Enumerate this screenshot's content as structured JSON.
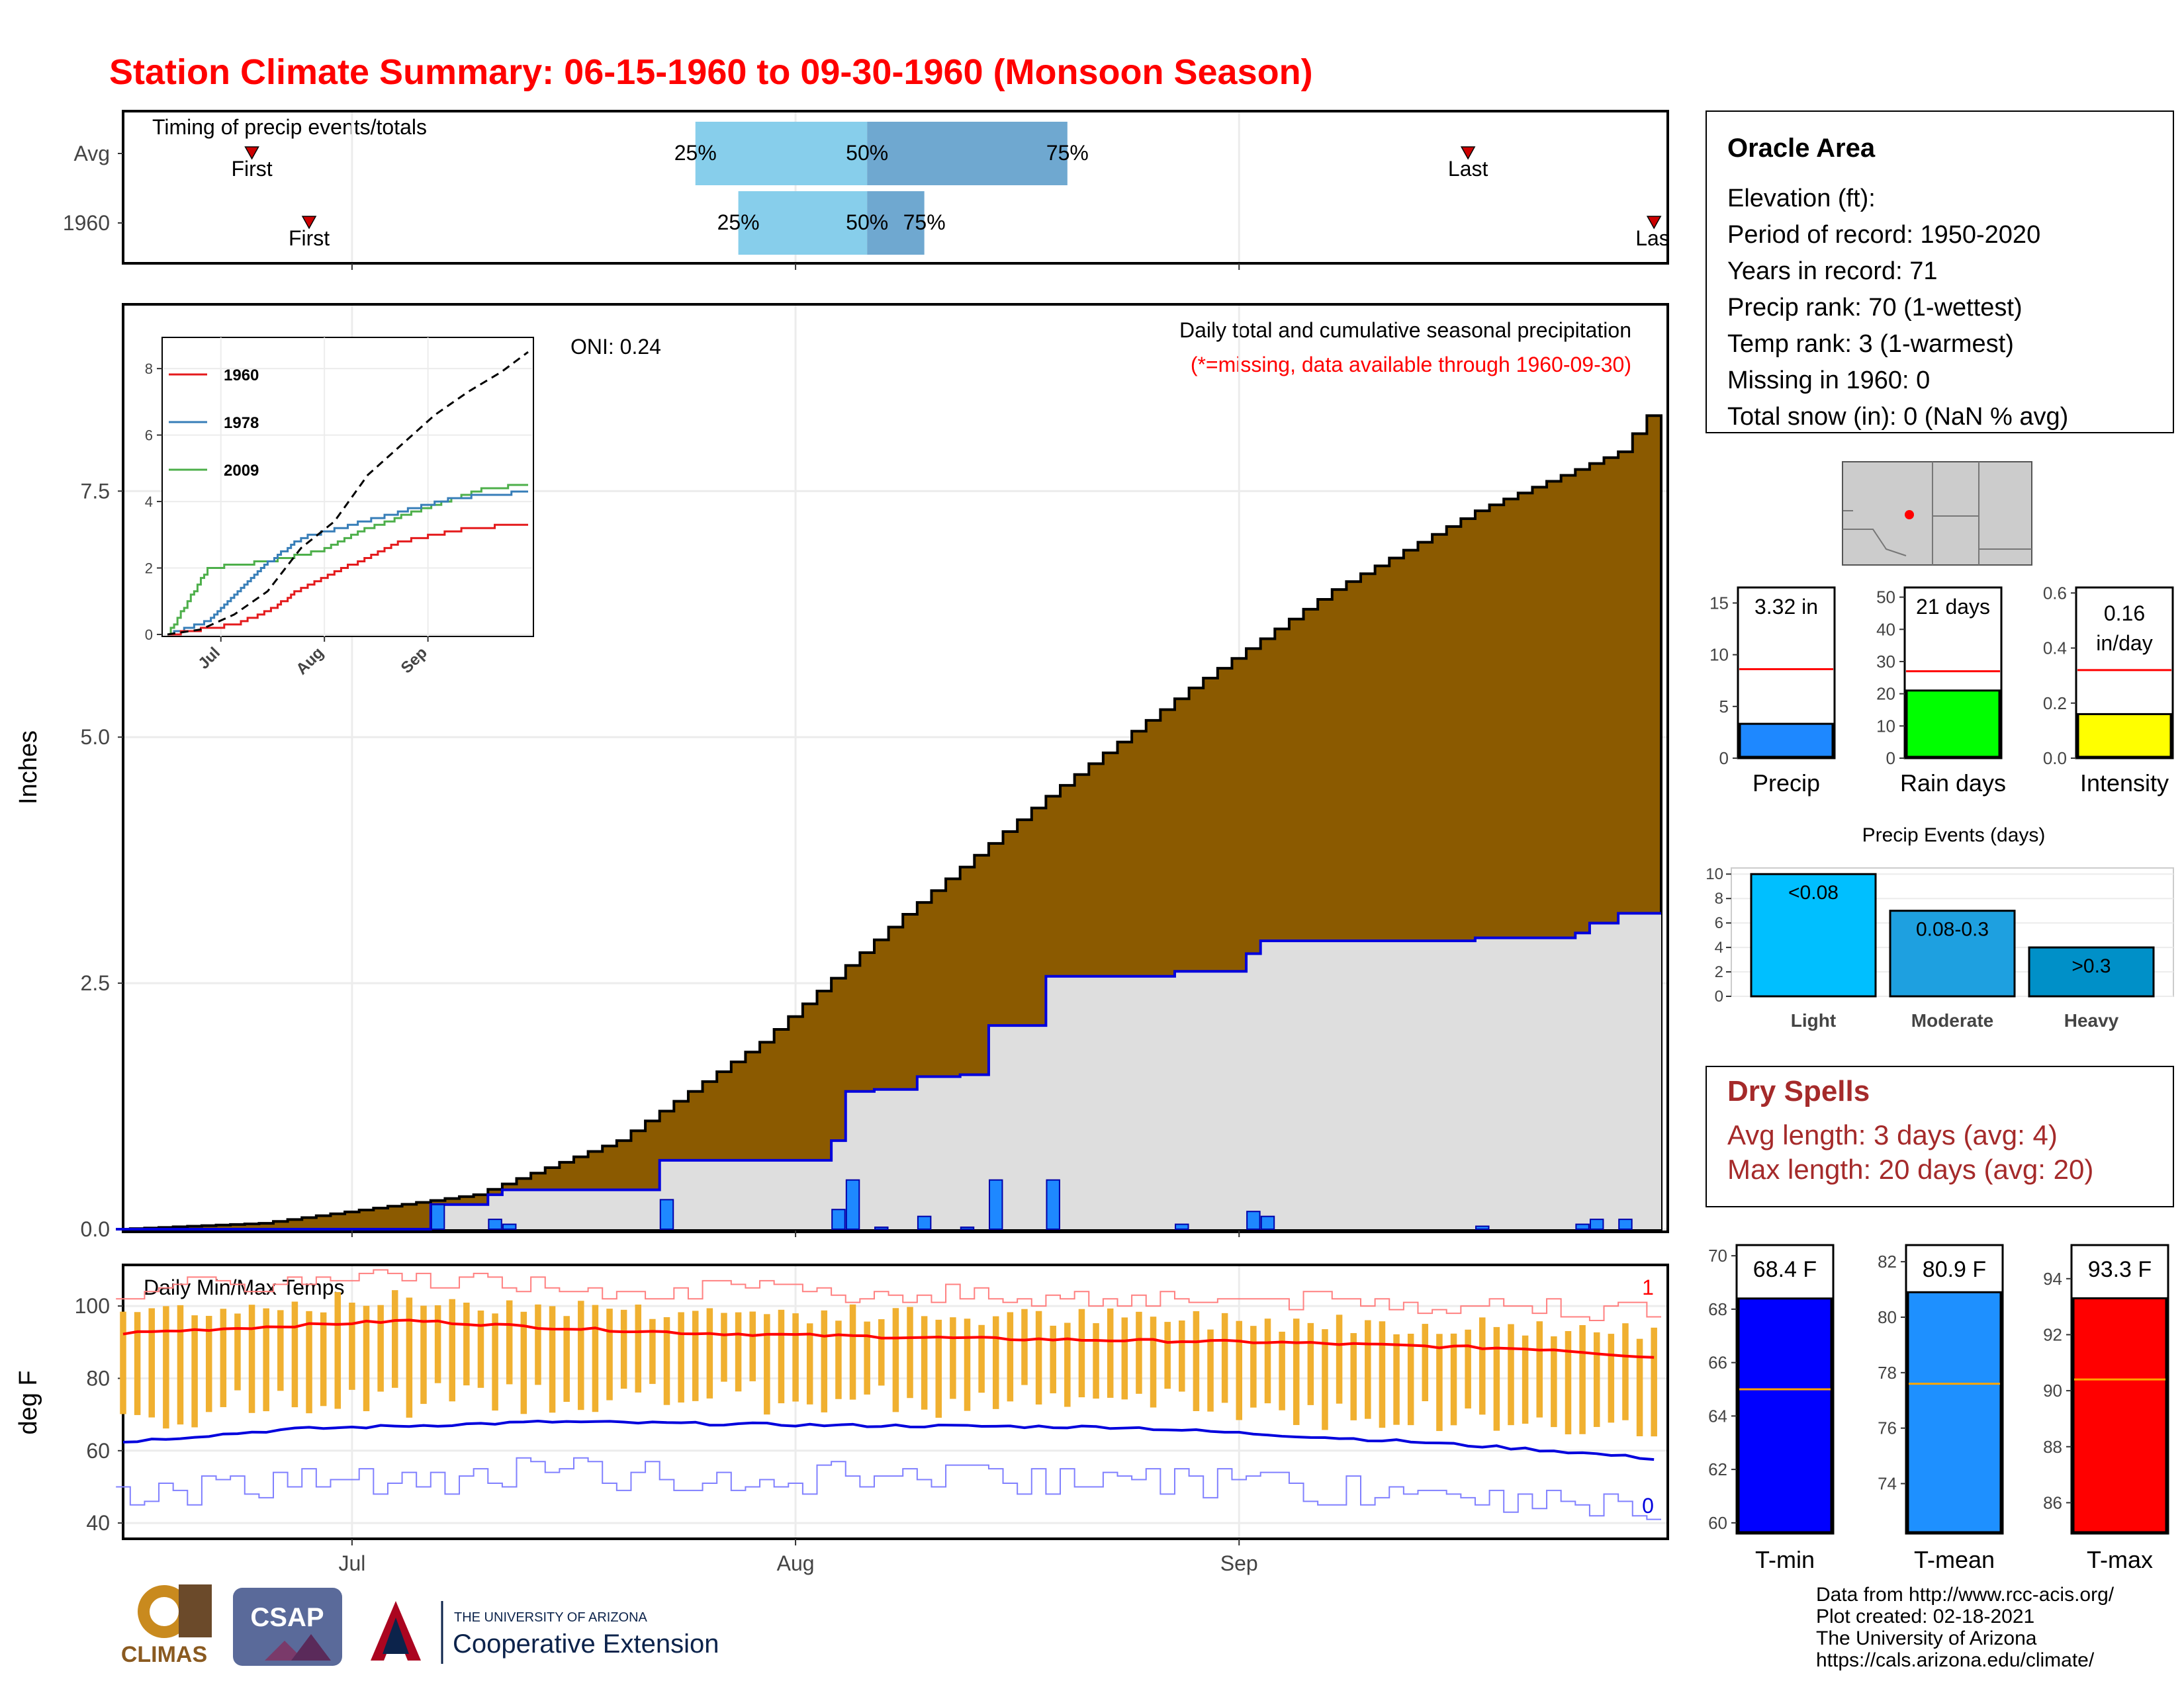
{
  "title": "Station Climate Summary: 06-15-1960 to 09-30-1960 (Monsoon Season)",
  "colors": {
    "title": "#ff0000",
    "precip_fill": "#8b5a00",
    "obs_fill": "#dedede",
    "obs_line": "#0000dd",
    "daily_bar": "#1e88ff",
    "timing_light": "#87ceeb",
    "timing_dark": "#6fa8d0",
    "temp_bar": "#f0b030",
    "tmax_line": "#ff0000",
    "tmin_line": "#0000dd",
    "dry_text": "#a52a2a"
  },
  "timing": {
    "title": "Timing of precip events/totals",
    "rows": [
      {
        "label": "Avg",
        "first": "06-24",
        "p25": "07-25",
        "p50": "08-06",
        "p75": "08-20",
        "last": "09-17",
        "first_label": "First",
        "last_label": "Last",
        "p25_label": "25%",
        "p50_label": "50%",
        "p75_label": "75%"
      },
      {
        "label": "1960",
        "first": "06-28",
        "p25": "07-28",
        "p50": "08-06",
        "p75": "08-10",
        "last": "09-30",
        "first_label": "First",
        "last_label": "Last",
        "p25_label": "25%",
        "p50_label": "50%",
        "p75_label": "75%"
      }
    ]
  },
  "precip_panel": {
    "title": "Daily total and cumulative seasonal precipitation",
    "subtitle": "(*=missing, data available through 1960-09-30)",
    "oni": "ONI: 0.24",
    "ylabel": "Inches",
    "y_ticks": [
      "0.0",
      "2.5",
      "5.0",
      "7.5"
    ],
    "ylim": [
      0,
      9.25
    ],
    "missing_count": "0",
    "x_ticks": [
      "Jul",
      "Aug",
      "Sep"
    ]
  },
  "inset": {
    "y_ticks": [
      "0",
      "2",
      "4",
      "6",
      "8"
    ],
    "x_ticks": [
      "Jul",
      "Aug",
      "Sep"
    ],
    "legend": [
      {
        "name": "1960",
        "color": "#e41a1c"
      },
      {
        "name": "1978",
        "color": "#377eb8"
      },
      {
        "name": "2009",
        "color": "#4daf4a"
      }
    ]
  },
  "temp_panel": {
    "title": "Daily Min/Max Temps",
    "ylabel": "deg F",
    "y_ticks": [
      "40",
      "60",
      "80",
      "100"
    ],
    "ylim": [
      36,
      111
    ],
    "x_ticks": [
      "Jul",
      "Aug",
      "Sep"
    ],
    "max_count": "1",
    "min_count": "0"
  },
  "station": {
    "name": "Oracle Area",
    "lines": [
      "Elevation (ft):",
      "Period of record: 1950-2020",
      "Years in record: 71",
      "Precip rank: 70 (1-wettest)",
      "Temp rank: 3 (1-warmest)",
      "Missing in 1960: 0",
      "Total snow (in): 0 (NaN % avg)"
    ]
  },
  "mini_bars": [
    {
      "label": "Precip",
      "value": 3.32,
      "value_text": "3.32 in",
      "avg": 8.6,
      "ymax": 16.5,
      "ticks": [
        "0",
        "5",
        "10",
        "15"
      ],
      "tick_vals": [
        0,
        5,
        10,
        15
      ],
      "color": "#1e88ff"
    },
    {
      "label": "Rain days",
      "value": 21,
      "value_text": "21 days",
      "avg": 27,
      "ymax": 53,
      "ticks": [
        "0",
        "10",
        "20",
        "30",
        "40",
        "50"
      ],
      "tick_vals": [
        0,
        10,
        20,
        30,
        40,
        50
      ],
      "color": "#00ff00"
    },
    {
      "label": "Intensity",
      "value": 0.16,
      "value_text": "0.16",
      "value_text2": "in/day",
      "avg": 0.32,
      "ymax": 0.62,
      "ticks": [
        "0.0",
        "0.2",
        "0.4",
        "0.6"
      ],
      "tick_vals": [
        0,
        0.2,
        0.4,
        0.6
      ],
      "color": "#ffff00"
    }
  ],
  "events": {
    "title": "Precip Events (days)",
    "ticks": [
      "0",
      "2",
      "4",
      "6",
      "8",
      "10"
    ],
    "bars": [
      {
        "label": "Light",
        "value": 10,
        "text": "<0.08",
        "color": "#00bfff"
      },
      {
        "label": "Moderate",
        "value": 7,
        "text": "0.08-0.3",
        "color": "#1ea0e0"
      },
      {
        "label": "Heavy",
        "value": 4,
        "text": ">0.3",
        "color": "#0090c8"
      }
    ]
  },
  "dry_spells": {
    "title": "Dry Spells",
    "avg_line": "Avg length: 3 days (avg: 4)",
    "max_line": "Max length: 20 days (avg: 20)"
  },
  "temp_bars": [
    {
      "label": "T-min",
      "value": 68.4,
      "value_text": "68.4 F",
      "avg": 65,
      "ymin": 59.6,
      "ymax": 70.4,
      "ticks": [
        "60",
        "62",
        "64",
        "66",
        "68",
        "70"
      ],
      "tick_vals": [
        60,
        62,
        64,
        66,
        68,
        70
      ],
      "color": "#0000ff"
    },
    {
      "label": "T-mean",
      "value": 80.9,
      "value_text": "80.9 F",
      "avg": 77.6,
      "ymin": 72.2,
      "ymax": 82.6,
      "ticks": [
        "74",
        "76",
        "78",
        "80",
        "82"
      ],
      "tick_vals": [
        74,
        76,
        78,
        80,
        82
      ],
      "color": "#1e90ff"
    },
    {
      "label": "T-max",
      "value": 93.3,
      "value_text": "93.3 F",
      "avg": 90.4,
      "ymin": 84.9,
      "ymax": 95.2,
      "ticks": [
        "86",
        "88",
        "90",
        "92",
        "94"
      ],
      "tick_vals": [
        86,
        88,
        90,
        92,
        94
      ],
      "color": "#ff0000"
    }
  ],
  "footer": {
    "logos": [
      "CLIMAS",
      "CSAP",
      "THE UNIVERSITY OF ARIZONA",
      "Cooperative Extension"
    ],
    "credits": [
      "Data from http://www.rcc-acis.org/",
      "Plot created: 02-18-2021",
      "The University of Arizona",
      "https://cals.arizona.edu/climate/"
    ]
  },
  "chart_data": {
    "type": "area",
    "start_date": "1960-06-15",
    "end_date": "1960-09-30",
    "cum_avg_anchors": [
      [
        0,
        0
      ],
      [
        10,
        0.06
      ],
      [
        25,
        0.35
      ],
      [
        35,
        0.9
      ],
      [
        45,
        1.9
      ],
      [
        55,
        3.2
      ],
      [
        65,
        4.4
      ],
      [
        75,
        5.5
      ],
      [
        85,
        6.5
      ],
      [
        95,
        7.3
      ],
      [
        105,
        7.9
      ],
      [
        108,
        8.45
      ]
    ],
    "daily_precip": [
      [
        22,
        0.25
      ],
      [
        26,
        0.1
      ],
      [
        27,
        0.05
      ],
      [
        38,
        0.3
      ],
      [
        50,
        0.2
      ],
      [
        51,
        0.5
      ],
      [
        53,
        0.02
      ],
      [
        56,
        0.13
      ],
      [
        59,
        0.02
      ],
      [
        61,
        0.5
      ],
      [
        65,
        0.5
      ],
      [
        74,
        0.05
      ],
      [
        79,
        0.18
      ],
      [
        80,
        0.13
      ],
      [
        95,
        0.03
      ],
      [
        102,
        0.05
      ],
      [
        103,
        0.1
      ],
      [
        105,
        0.1
      ]
    ],
    "tmax_avg": [
      [
        0,
        92.5
      ],
      [
        20,
        96
      ],
      [
        30,
        94
      ],
      [
        40,
        92.5
      ],
      [
        60,
        91
      ],
      [
        80,
        90
      ],
      [
        90,
        89
      ],
      [
        100,
        88
      ],
      [
        108,
        85.5
      ]
    ],
    "tmin_avg": [
      [
        0,
        62.5
      ],
      [
        12,
        66
      ],
      [
        30,
        68
      ],
      [
        50,
        67
      ],
      [
        70,
        66.5
      ],
      [
        80,
        64.5
      ],
      [
        90,
        62.5
      ],
      [
        100,
        60
      ],
      [
        108,
        57.5
      ]
    ],
    "inset_cum": {
      "avg": [
        [
          0,
          0
        ],
        [
          10,
          0.15
        ],
        [
          20,
          0.6
        ],
        [
          30,
          1.3
        ],
        [
          40,
          2.6
        ],
        [
          50,
          3.4
        ],
        [
          60,
          4.8
        ],
        [
          70,
          5.7
        ],
        [
          80,
          6.6
        ],
        [
          90,
          7.3
        ],
        [
          100,
          7.9
        ],
        [
          108,
          8.5
        ]
      ],
      "1960": [
        [
          0,
          0
        ],
        [
          20,
          0.3
        ],
        [
          30,
          0.7
        ],
        [
          40,
          1.4
        ],
        [
          55,
          2.1
        ],
        [
          70,
          2.8
        ],
        [
          90,
          3.2
        ],
        [
          108,
          3.32
        ]
      ],
      "1978": [
        [
          0,
          0
        ],
        [
          12,
          0.4
        ],
        [
          28,
          2.0
        ],
        [
          40,
          2.9
        ],
        [
          55,
          3.3
        ],
        [
          70,
          3.7
        ],
        [
          85,
          4.1
        ],
        [
          108,
          4.3
        ]
      ],
      "2009": [
        [
          0,
          0
        ],
        [
          12,
          2.0
        ],
        [
          30,
          2.2
        ],
        [
          45,
          2.5
        ],
        [
          60,
          3.2
        ],
        [
          80,
          3.9
        ],
        [
          95,
          4.4
        ],
        [
          108,
          4.5
        ]
      ]
    }
  }
}
